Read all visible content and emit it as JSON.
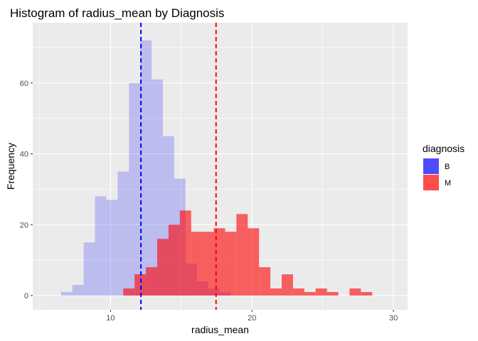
{
  "chart_data": {
    "type": "bar",
    "title": "Histogram of radius_mean by Diagnosis",
    "xlabel": "radius_mean",
    "ylabel": "Frequency",
    "xlim": [
      4.5,
      31
    ],
    "ylim": [
      -4,
      77
    ],
    "xticks": [
      10,
      20,
      30
    ],
    "yticks": [
      0,
      20,
      40,
      60
    ],
    "bin_width": 0.8,
    "grid": true,
    "legend": {
      "title": "diagnosis",
      "position": "right",
      "entries": [
        {
          "label": "B",
          "color": "#4c4cff"
        },
        {
          "label": "M",
          "color": "#ff4c4c"
        }
      ]
    },
    "series": [
      {
        "label": "B",
        "color": "#0000ff",
        "opacity": 0.2,
        "mean": 12.15,
        "bins": [
          {
            "x0": 6.5,
            "count": 1
          },
          {
            "x0": 7.3,
            "count": 3
          },
          {
            "x0": 8.1,
            "count": 15
          },
          {
            "x0": 8.9,
            "count": 28
          },
          {
            "x0": 9.7,
            "count": 27
          },
          {
            "x0": 10.5,
            "count": 35
          },
          {
            "x0": 11.3,
            "count": 60
          },
          {
            "x0": 12.1,
            "count": 72
          },
          {
            "x0": 12.9,
            "count": 61
          },
          {
            "x0": 13.7,
            "count": 45
          },
          {
            "x0": 14.5,
            "count": 33
          },
          {
            "x0": 15.3,
            "count": 9
          },
          {
            "x0": 16.1,
            "count": 4
          },
          {
            "x0": 16.9,
            "count": 2
          },
          {
            "x0": 17.7,
            "count": 1
          }
        ]
      },
      {
        "label": "M",
        "color": "#ff0000",
        "opacity": 0.6,
        "mean": 17.46,
        "bins": [
          {
            "x0": 10.9,
            "count": 2
          },
          {
            "x0": 11.7,
            "count": 6
          },
          {
            "x0": 12.5,
            "count": 8
          },
          {
            "x0": 13.3,
            "count": 16
          },
          {
            "x0": 14.1,
            "count": 20
          },
          {
            "x0": 14.9,
            "count": 24
          },
          {
            "x0": 15.7,
            "count": 18
          },
          {
            "x0": 16.5,
            "count": 18
          },
          {
            "x0": 17.3,
            "count": 19
          },
          {
            "x0": 18.1,
            "count": 18
          },
          {
            "x0": 18.9,
            "count": 23
          },
          {
            "x0": 19.7,
            "count": 19
          },
          {
            "x0": 20.5,
            "count": 8
          },
          {
            "x0": 21.3,
            "count": 2
          },
          {
            "x0": 22.1,
            "count": 6
          },
          {
            "x0": 22.9,
            "count": 2
          },
          {
            "x0": 23.7,
            "count": 1
          },
          {
            "x0": 24.5,
            "count": 2
          },
          {
            "x0": 25.3,
            "count": 1
          },
          {
            "x0": 26.1,
            "count": 0
          },
          {
            "x0": 26.9,
            "count": 2
          },
          {
            "x0": 27.7,
            "count": 1
          }
        ]
      }
    ]
  }
}
